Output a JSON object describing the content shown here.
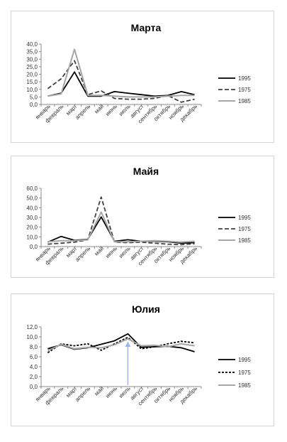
{
  "chart_data": [
    {
      "type": "line",
      "title": "Марта",
      "categories": [
        "январь",
        "февраль",
        "март",
        "апрель",
        "май",
        "июнь",
        "июль",
        "август",
        "сентябрь",
        "октябрь",
        "ноябрь",
        "декабрь"
      ],
      "ylim": [
        0,
        40
      ],
      "yticks": [
        "0,0",
        "5,0",
        "10,0",
        "15,0",
        "20,0",
        "25,0",
        "30,0",
        "35,0",
        "40,0"
      ],
      "legend_position": "right",
      "grid": false,
      "series": [
        {
          "name": "1995",
          "style": "solid",
          "color": "#000000",
          "values": [
            5.5,
            7.5,
            21.5,
            5.5,
            5.5,
            8.5,
            7.5,
            6.5,
            5.5,
            6.0,
            8.5,
            6.5
          ]
        },
        {
          "name": "1975",
          "style": "dashed",
          "color": "#404040",
          "values": [
            10.5,
            17.0,
            29.0,
            6.5,
            9.0,
            4.0,
            3.5,
            3.5,
            4.0,
            6.0,
            1.5,
            3.5
          ]
        },
        {
          "name": "1985",
          "style": "solid",
          "color": "#a6a6a6",
          "values": [
            5.5,
            7.0,
            36.5,
            6.0,
            6.0,
            5.5,
            5.0,
            5.0,
            5.0,
            5.5,
            6.0,
            6.0
          ]
        }
      ]
    },
    {
      "type": "line",
      "title": "Майя",
      "categories": [
        "январь",
        "февраль",
        "март",
        "апрель",
        "май",
        "июнь",
        "июль",
        "август",
        "сентябрь",
        "октябрь",
        "ноябрь",
        "декабрь"
      ],
      "ylim": [
        0,
        60
      ],
      "yticks": [
        "0,0",
        "10,0",
        "20,0",
        "30,0",
        "40,0",
        "50,0",
        "60,0"
      ],
      "legend_position": "right",
      "grid": false,
      "series": [
        {
          "name": "1995",
          "style": "solid",
          "color": "#000000",
          "values": [
            4.5,
            10.5,
            6.5,
            7.5,
            30.5,
            5.5,
            7.0,
            5.5,
            5.5,
            5.0,
            3.5,
            4.0
          ]
        },
        {
          "name": "1975",
          "style": "dashed",
          "color": "#404040",
          "values": [
            2.5,
            3.5,
            4.5,
            7.0,
            51.0,
            4.5,
            4.0,
            4.5,
            3.5,
            2.5,
            2.0,
            3.0
          ]
        },
        {
          "name": "1985",
          "style": "solid",
          "color": "#a6a6a6",
          "values": [
            5.0,
            6.0,
            6.0,
            7.0,
            35.5,
            5.0,
            5.0,
            5.5,
            6.0,
            5.5,
            4.5,
            5.5
          ]
        }
      ]
    },
    {
      "type": "line",
      "title": "Юлия",
      "categories": [
        "январь",
        "февраль",
        "март",
        "апрель",
        "май",
        "июнь",
        "июль",
        "август",
        "сентябрь",
        "октябрь",
        "ноябрь",
        "декабрь"
      ],
      "ylim": [
        0,
        12
      ],
      "yticks": [
        "0,0",
        "2,0",
        "4,0",
        "6,0",
        "8,0",
        "10,0",
        "12,0"
      ],
      "legend_position": "right",
      "grid": false,
      "annotation": {
        "type": "arrow",
        "color": "#9fb4e8",
        "category": "июль"
      },
      "series": [
        {
          "name": "1995",
          "style": "solid",
          "color": "#000000",
          "values": [
            7.6,
            8.4,
            7.5,
            7.8,
            8.5,
            9.2,
            10.6,
            7.9,
            8.0,
            8.1,
            7.8,
            7.0
          ]
        },
        {
          "name": "1975",
          "style": "dotted",
          "color": "#000000",
          "values": [
            6.8,
            8.6,
            8.2,
            8.6,
            7.3,
            8.6,
            9.9,
            7.6,
            8.0,
            8.6,
            9.1,
            8.8
          ]
        },
        {
          "name": "1985",
          "style": "solid",
          "color": "#a6a6a6",
          "values": [
            7.2,
            8.5,
            7.6,
            7.9,
            7.8,
            8.4,
            9.6,
            8.2,
            8.3,
            8.0,
            8.6,
            8.2
          ]
        }
      ]
    }
  ]
}
